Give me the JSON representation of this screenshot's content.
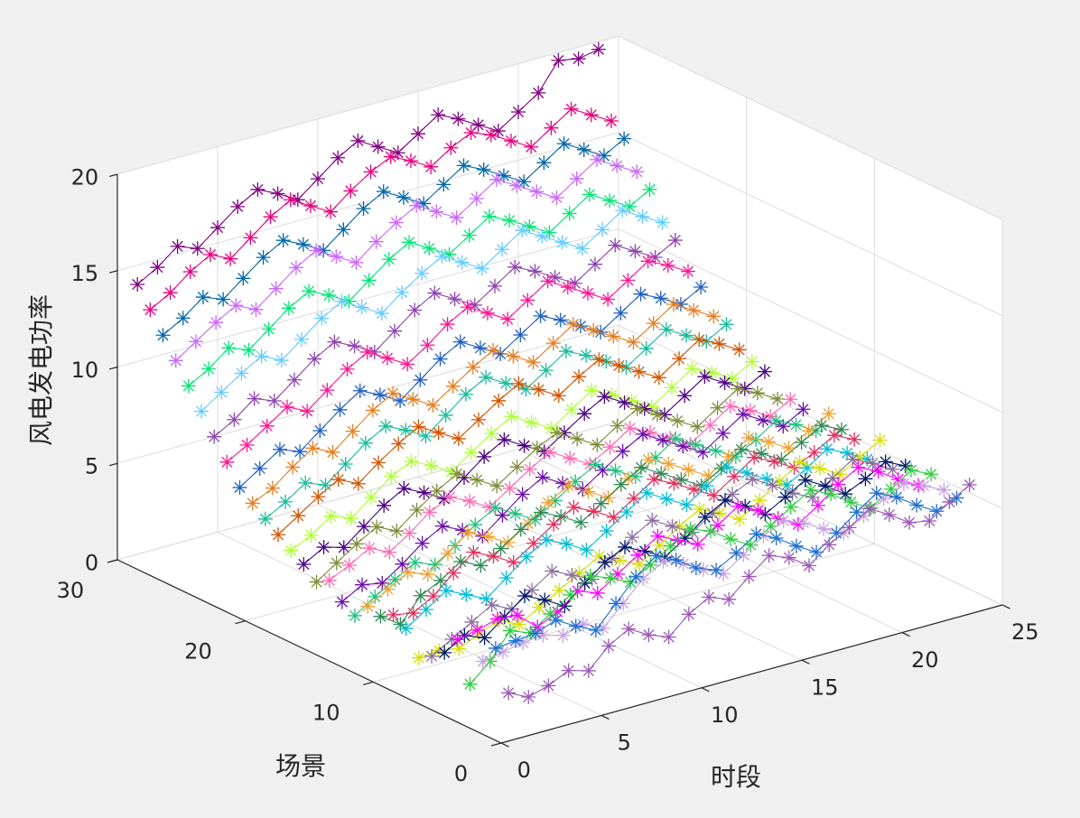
{
  "chart_data": {
    "type": "line3d",
    "xlabel": "时段",
    "ylabel": "场景",
    "zlabel": "风电发电功率",
    "xlim": [
      0,
      25
    ],
    "ylim": [
      0,
      30
    ],
    "zlim": [
      0,
      20
    ],
    "xticks": [
      "0",
      "5",
      "10",
      "15",
      "20",
      "25"
    ],
    "yticks": [
      "0",
      "10",
      "20",
      "30"
    ],
    "zticks": [
      "0",
      "5",
      "10",
      "15",
      "20"
    ],
    "grid": true,
    "marker": "*",
    "x": [
      1,
      2,
      3,
      4,
      5,
      6,
      7,
      8,
      9,
      10,
      11,
      12,
      13,
      14,
      15,
      16,
      17,
      18,
      19,
      20,
      21,
      22,
      23,
      24
    ],
    "series": [
      {
        "color": "#9b59b6",
        "values": [
          2.0,
          1.5,
          1.8,
          2.3,
          2.0,
          3.0,
          3.6,
          3.0,
          2.6,
          3.5,
          4.1,
          3.7,
          4.6,
          5.4,
          5.0,
          4.3,
          5.1,
          5.7,
          6.4,
          5.8,
          5.1,
          4.9,
          5.6,
          6.2
        ]
      },
      {
        "color": "#1f6fd1",
        "values": [
          4.0,
          4.1,
          4.2,
          4.6,
          4.0,
          3.5,
          4.6,
          5.7,
          6.5,
          6.0,
          5.3,
          4.9,
          5.5,
          6.2,
          5.7,
          5.0,
          4.4,
          5.1,
          5.9,
          6.6,
          6.1,
          5.4,
          4.8,
          5.2
        ]
      },
      {
        "color": "#c8a2e0",
        "values": [
          3.0,
          3.2,
          3.4,
          3.5,
          3.2,
          3.5,
          3.0,
          4.0,
          5.0,
          5.6,
          5.2,
          4.6,
          4.1,
          4.8,
          5.5,
          6.0,
          5.6,
          5.0,
          4.5,
          5.1,
          5.7,
          6.2,
          5.8,
          5.3
        ]
      },
      {
        "color": "#2ecc40",
        "values": [
          1.5,
          2.4,
          3.7,
          3.3,
          4.0,
          4.7,
          5.4,
          5.0,
          4.5,
          5.1,
          5.8,
          6.4,
          6.0,
          5.3,
          4.7,
          5.4,
          6.1,
          6.7,
          6.2,
          5.5,
          4.9,
          5.6,
          6.3,
          5.8
        ]
      },
      {
        "color": "#ff00ff",
        "values": [
          3.5,
          3.7,
          4.0,
          3.9,
          3.0,
          3.5,
          4.3,
          3.9,
          4.6,
          5.3,
          6.0,
          5.5,
          5.0,
          5.7,
          6.4,
          5.9,
          5.2,
          4.6,
          5.3,
          6.1,
          6.7,
          6.2,
          5.5,
          4.9
        ]
      },
      {
        "color": "#001a66",
        "values": [
          2.5,
          3.1,
          2.7,
          3.5,
          4.3,
          3.8,
          3.2,
          4.1,
          4.9,
          5.4,
          4.9,
          4.3,
          5.0,
          5.8,
          6.4,
          5.8,
          5.1,
          5.7,
          6.3,
          5.7,
          5.0,
          5.5,
          6.1,
          5.6
        ]
      },
      {
        "color": "#8a6f9e",
        "values": [
          2.0,
          2.6,
          3.2,
          3.8,
          3.3,
          4.0,
          4.7,
          4.2,
          3.7,
          4.5,
          5.3,
          5.9,
          5.3,
          4.7,
          5.4,
          6.1,
          6.6,
          6.0,
          5.3,
          4.8,
          5.5,
          6.2,
          5.7,
          5.1
        ]
      },
      {
        "color": "#d4e000",
        "values": [
          1.6,
          1.7,
          1.5,
          2.0,
          2.4,
          1.9,
          2.5,
          3.1,
          3.7,
          4.3,
          3.8,
          3.3,
          4.0,
          4.7,
          5.3,
          4.8,
          4.2,
          4.9,
          5.6,
          6.3,
          5.7,
          5.1,
          5.7,
          6.3
        ]
      },
      {
        "color": "#00bcd4",
        "values": [
          2.8,
          3.5,
          4.2,
          3.7,
          3.2,
          4.0,
          4.8,
          5.4,
          4.9,
          4.3,
          5.0,
          5.7,
          6.4,
          5.8,
          5.2,
          5.9,
          6.6,
          6.0,
          5.4,
          4.8,
          5.4,
          6.1,
          5.6,
          5.0
        ]
      },
      {
        "color": "#e03060",
        "values": [
          3.2,
          3.0,
          3.6,
          4.5,
          5.3,
          4.8,
          4.2,
          4.9,
          5.6,
          6.2,
          5.7,
          5.1,
          5.8,
          6.5,
          6.0,
          5.4,
          4.8,
          5.5,
          6.2,
          5.7,
          5.1,
          5.6,
          6.2,
          5.7
        ]
      },
      {
        "color": "#2e8b57",
        "values": [
          2.8,
          2.1,
          3.3,
          3.8,
          4.5,
          4.0,
          4.6,
          5.3,
          5.9,
          5.4,
          4.8,
          5.5,
          6.2,
          6.8,
          6.2,
          5.6,
          5.0,
          5.6,
          6.3,
          5.8,
          5.2,
          5.8,
          6.4,
          5.9
        ]
      },
      {
        "color": "#f0a030",
        "values": [
          3.0,
          3.6,
          4.2,
          3.8,
          4.6,
          5.4,
          4.9,
          4.3,
          5.0,
          5.8,
          6.4,
          5.8,
          5.2,
          5.9,
          6.6,
          6.1,
          5.5,
          4.9,
          5.6,
          6.3,
          5.8,
          5.2,
          5.8,
          6.4
        ]
      },
      {
        "color": "#20c080",
        "values": [
          2.2,
          2.9,
          3.5,
          4.1,
          3.7,
          4.4,
          5.2,
          5.8,
          5.2,
          4.6,
          5.3,
          6.0,
          6.6,
          6.0,
          5.4,
          6.1,
          6.8,
          6.2,
          5.6,
          5.0,
          5.6,
          6.3,
          5.8,
          5.2
        ]
      },
      {
        "color": "#6a0dad",
        "values": [
          2.6,
          3.2,
          3.0,
          3.7,
          4.5,
          5.1,
          4.6,
          4.0,
          4.8,
          5.6,
          6.2,
          5.6,
          5.0,
          5.7,
          6.4,
          7.0,
          6.4,
          5.8,
          5.2,
          5.9,
          6.6,
          6.0,
          5.4,
          6.0
        ]
      },
      {
        "color": "#ff69b4",
        "values": [
          3.4,
          3.9,
          4.5,
          4.0,
          4.7,
          5.5,
          6.0,
          5.5,
          4.9,
          5.6,
          6.3,
          6.9,
          6.3,
          5.7,
          6.3,
          7.0,
          6.5,
          5.9,
          5.3,
          6.0,
          6.7,
          6.2,
          5.6,
          6.2
        ]
      },
      {
        "color": "#7f8c3a",
        "values": [
          3.0,
          3.7,
          4.4,
          5.0,
          4.5,
          5.3,
          6.0,
          6.6,
          6.0,
          5.4,
          6.1,
          6.8,
          7.3,
          6.7,
          6.1,
          6.8,
          7.4,
          6.8,
          6.2,
          5.6,
          6.3,
          7.0,
          6.5,
          5.9
        ]
      },
      {
        "color": "#4b0082",
        "values": [
          3.6,
          4.2,
          3.9,
          4.7,
          5.5,
          6.1,
          5.6,
          5.0,
          5.8,
          6.6,
          7.2,
          6.6,
          6.0,
          6.7,
          7.4,
          8.0,
          7.4,
          6.8,
          6.2,
          6.9,
          7.6,
          7.0,
          6.4,
          7.0
        ]
      },
      {
        "color": "#adff2f",
        "values": [
          4.0,
          4.5,
          5.2,
          4.8,
          5.6,
          6.4,
          6.9,
          6.4,
          5.8,
          6.5,
          7.2,
          7.8,
          7.2,
          6.6,
          7.3,
          8.0,
          7.5,
          6.9,
          6.3,
          7.0,
          7.7,
          7.2,
          6.6,
          7.2
        ]
      },
      {
        "color": "#d35400",
        "values": [
          4.5,
          5.2,
          5.9,
          6.5,
          6.0,
          6.8,
          7.5,
          8.1,
          7.5,
          6.9,
          7.6,
          8.3,
          8.9,
          8.3,
          7.7,
          8.4,
          9.0,
          8.4,
          7.8,
          7.2,
          7.9,
          8.6,
          8.1,
          7.5
        ]
      },
      {
        "color": "#1abc9c",
        "values": [
          5.0,
          5.6,
          6.3,
          5.9,
          6.7,
          7.5,
          8.1,
          7.6,
          7.0,
          7.8,
          8.6,
          9.2,
          8.6,
          8.0,
          8.7,
          9.4,
          8.9,
          8.3,
          7.7,
          8.4,
          9.1,
          8.5,
          7.9,
          8.5
        ]
      },
      {
        "color": "#e67e22",
        "values": [
          5.5,
          6.0,
          6.8,
          7.5,
          7.0,
          7.8,
          8.6,
          9.2,
          8.6,
          8.0,
          8.7,
          9.4,
          10.0,
          9.4,
          8.8,
          9.5,
          10.2,
          9.6,
          9.0,
          8.4,
          9.1,
          9.8,
          9.2,
          8.6
        ]
      },
      {
        "color": "#2060c0",
        "values": [
          6.0,
          6.7,
          7.4,
          7.0,
          7.8,
          8.6,
          9.3,
          8.8,
          8.2,
          9.0,
          9.8,
          10.4,
          9.8,
          9.2,
          9.9,
          10.6,
          10.1,
          9.5,
          8.9,
          9.6,
          10.3,
          9.8,
          9.2,
          9.8
        ]
      },
      {
        "color": "#ff1493",
        "values": [
          7.0,
          7.6,
          8.3,
          9.0,
          8.5,
          9.3,
          10.1,
          10.7,
          10.1,
          9.5,
          10.2,
          11.0,
          11.6,
          11.0,
          10.4,
          11.1,
          11.8,
          11.2,
          10.6,
          10.0,
          10.7,
          11.4,
          10.9,
          10.3
        ]
      },
      {
        "color": "#8e44ad",
        "values": [
          8.0,
          8.6,
          9.4,
          9.0,
          9.8,
          10.6,
          11.2,
          10.7,
          10.1,
          10.9,
          11.7,
          12.3,
          11.7,
          11.1,
          11.8,
          12.5,
          12.0,
          11.4,
          10.8,
          11.5,
          12.2,
          11.6,
          11.0,
          11.6
        ]
      },
      {
        "color": "#66ccff",
        "values": [
          9.0,
          9.7,
          10.4,
          11.0,
          10.5,
          11.3,
          12.1,
          12.7,
          12.1,
          11.5,
          12.3,
          13.0,
          13.6,
          13.0,
          12.4,
          13.1,
          13.8,
          13.2,
          12.6,
          12.0,
          12.7,
          13.4,
          12.8,
          12.2
        ]
      },
      {
        "color": "#00e676",
        "values": [
          10.0,
          10.6,
          11.4,
          11.0,
          11.8,
          12.6,
          13.2,
          12.7,
          12.1,
          12.9,
          13.7,
          14.3,
          13.7,
          13.1,
          13.8,
          14.5,
          14.0,
          13.4,
          12.8,
          13.5,
          14.2,
          13.6,
          13.0,
          13.6
        ]
      },
      {
        "color": "#cc66ff",
        "values": [
          11.0,
          11.7,
          12.4,
          13.0,
          12.5,
          13.3,
          14.1,
          14.7,
          14.1,
          13.5,
          14.3,
          15.0,
          15.6,
          15.0,
          14.4,
          15.1,
          15.8,
          15.2,
          14.6,
          14.0,
          14.7,
          15.4,
          14.8,
          14.2
        ]
      },
      {
        "color": "#0066aa",
        "values": [
          12.0,
          12.6,
          13.4,
          13.0,
          13.8,
          14.6,
          15.2,
          14.7,
          14.1,
          14.9,
          15.7,
          16.3,
          15.7,
          15.1,
          15.8,
          16.5,
          16.0,
          15.4,
          14.8,
          15.5,
          16.2,
          15.6,
          15.0,
          15.6
        ]
      },
      {
        "color": "#e6007e",
        "values": [
          13.0,
          13.6,
          14.4,
          15.0,
          14.5,
          15.3,
          16.1,
          16.7,
          16.1,
          15.5,
          16.3,
          17.0,
          17.5,
          17.0,
          16.4,
          17.1,
          17.6,
          17.2,
          16.6,
          16.0,
          16.7,
          17.4,
          16.8,
          16.2
        ]
      },
      {
        "color": "#800080",
        "values": [
          14.0,
          14.6,
          15.4,
          15.0,
          15.8,
          16.6,
          17.2,
          16.7,
          16.1,
          16.9,
          17.7,
          18.3,
          17.7,
          17.1,
          17.8,
          18.5,
          18.0,
          17.4,
          16.8,
          17.5,
          18.2,
          19.6,
          19.4,
          19.6
        ]
      }
    ]
  }
}
